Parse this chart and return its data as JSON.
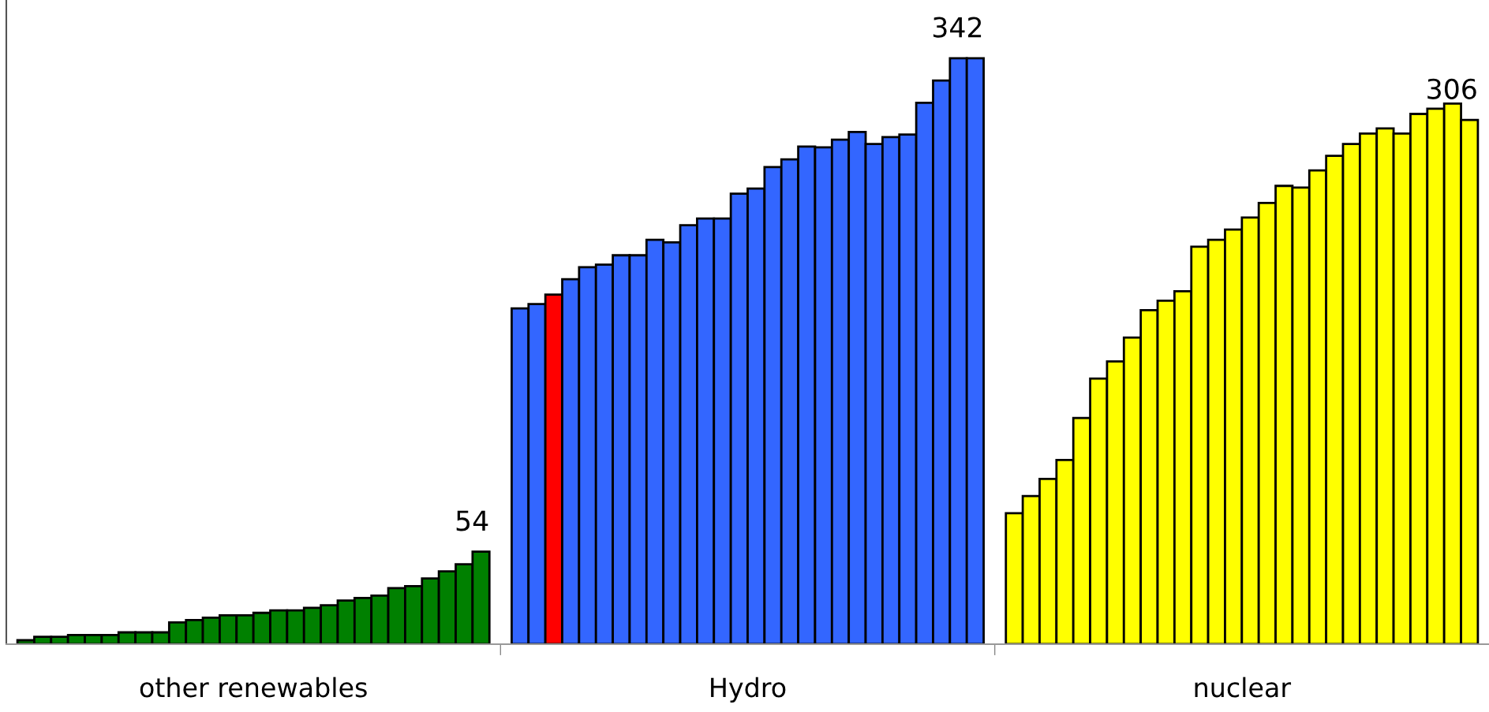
{
  "chart_data": {
    "type": "bar",
    "categories": [
      "other renewables",
      "Hydro",
      "nuclear"
    ],
    "ylim": [
      0,
      376
    ],
    "grid": false,
    "tick_labels": "x",
    "series": [
      {
        "colors": [
          "#008000",
          "#3366ff",
          "#ffff00"
        ],
        "values": [
          2.3,
          196,
          76.5
        ]
      },
      {
        "colors": [
          "#008000",
          "#3366ff",
          "#ffff00"
        ],
        "values": [
          4.3,
          198.5,
          86.5
        ]
      },
      {
        "colors": [
          "#008000",
          "#ff0000",
          "#ffff00"
        ],
        "values": [
          4.3,
          204,
          96.5
        ]
      },
      {
        "colors": [
          "#008000",
          "#3366ff",
          "#ffff00"
        ],
        "values": [
          5.4,
          213,
          107.5
        ]
      },
      {
        "colors": [
          "#008000",
          "#3366ff",
          "#ffff00"
        ],
        "values": [
          5.4,
          220,
          132
        ]
      },
      {
        "colors": [
          "#008000",
          "#3366ff",
          "#ffff00"
        ],
        "values": [
          5.4,
          221.5,
          155
        ]
      },
      {
        "colors": [
          "#008000",
          "#3366ff",
          "#ffff00"
        ],
        "values": [
          6.9,
          227,
          165
        ]
      },
      {
        "colors": [
          "#008000",
          "#3366ff",
          "#ffff00"
        ],
        "values": [
          6.9,
          227,
          179
        ]
      },
      {
        "colors": [
          "#008000",
          "#3366ff",
          "#ffff00"
        ],
        "values": [
          6.9,
          236,
          195
        ]
      },
      {
        "colors": [
          "#008000",
          "#3366ff",
          "#ffff00"
        ],
        "values": [
          12.7,
          234.5,
          200.5
        ]
      },
      {
        "colors": [
          "#008000",
          "#3366ff",
          "#ffff00"
        ],
        "values": [
          14.1,
          244.5,
          206
        ]
      },
      {
        "colors": [
          "#008000",
          "#3366ff",
          "#ffff00"
        ],
        "values": [
          15.5,
          248.5,
          232
        ]
      },
      {
        "colors": [
          "#008000",
          "#3366ff",
          "#ffff00"
        ],
        "values": [
          16.9,
          248.5,
          236
        ]
      },
      {
        "colors": [
          "#008000",
          "#3366ff",
          "#ffff00"
        ],
        "values": [
          16.9,
          263,
          242
        ]
      },
      {
        "colors": [
          "#008000",
          "#3366ff",
          "#ffff00"
        ],
        "values": [
          18.3,
          266,
          249
        ]
      },
      {
        "colors": [
          "#008000",
          "#3366ff",
          "#ffff00"
        ],
        "values": [
          19.7,
          278.5,
          257.5
        ]
      },
      {
        "colors": [
          "#008000",
          "#3366ff",
          "#ffff00"
        ],
        "values": [
          19.7,
          283,
          267.5
        ]
      },
      {
        "colors": [
          "#008000",
          "#3366ff",
          "#ffff00"
        ],
        "values": [
          21.2,
          290.5,
          266.5
        ]
      },
      {
        "colors": [
          "#008000",
          "#3366ff",
          "#ffff00"
        ],
        "values": [
          22.7,
          290,
          276.5
        ]
      },
      {
        "colors": [
          "#008000",
          "#3366ff",
          "#ffff00"
        ],
        "values": [
          25.5,
          294.5,
          285
        ]
      },
      {
        "colors": [
          "#008000",
          "#3366ff",
          "#ffff00"
        ],
        "values": [
          27,
          299,
          292
        ]
      },
      {
        "colors": [
          "#008000",
          "#3366ff",
          "#ffff00"
        ],
        "values": [
          28.4,
          292,
          298
        ]
      },
      {
        "colors": [
          "#008000",
          "#3366ff",
          "#ffff00"
        ],
        "values": [
          32.7,
          296,
          301
        ]
      },
      {
        "colors": [
          "#008000",
          "#3366ff",
          "#ffff00"
        ],
        "values": [
          33.9,
          297.5,
          298
        ]
      },
      {
        "colors": [
          "#008000",
          "#3366ff",
          "#ffff00"
        ],
        "values": [
          38.4,
          316,
          309.5
        ]
      },
      {
        "colors": [
          "#008000",
          "#3366ff",
          "#ffff00"
        ],
        "values": [
          42.5,
          329,
          312.5
        ]
      },
      {
        "colors": [
          "#008000",
          "#3366ff",
          "#ffff00"
        ],
        "values": [
          46.7,
          342,
          315.5
        ]
      },
      {
        "colors": [
          "#008000",
          "#3366ff",
          "#ffff00"
        ],
        "values": [
          54,
          342,
          306
        ],
        "value_labels": [
          "54",
          "342",
          "306"
        ]
      }
    ]
  }
}
